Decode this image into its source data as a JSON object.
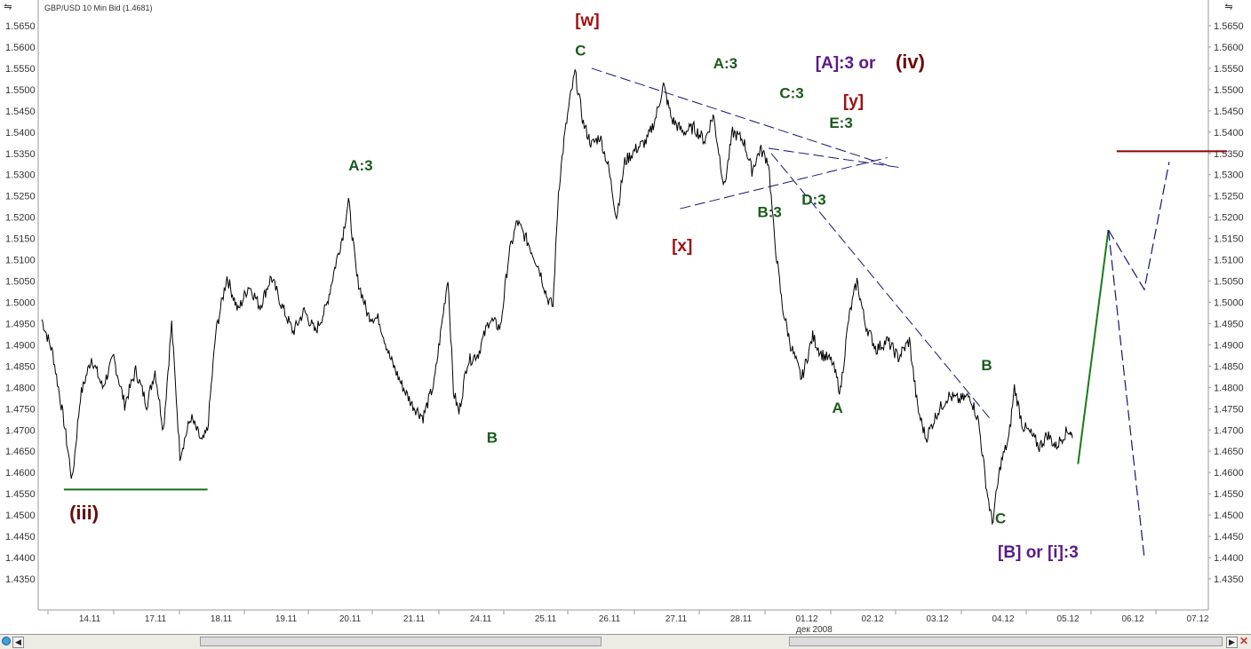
{
  "chart_data": {
    "type": "line",
    "title": "GBP/USD 10 Min Bid (1.4681)",
    "x_date_label": "дек 2008",
    "x_ticks": [
      "14.11",
      "17.11",
      "18.11",
      "19.11",
      "20.11",
      "21.11",
      "24.11",
      "25.11",
      "26.11",
      "27.11",
      "28.11",
      "01.12",
      "02.12",
      "03.12",
      "04.12",
      "05.12",
      "06.12",
      "07.12"
    ],
    "y_ticks": [
      "1.5650",
      "1.5600",
      "1.5550",
      "1.5500",
      "1.5450",
      "1.5400",
      "1.5350",
      "1.5300",
      "1.5250",
      "1.5200",
      "1.5150",
      "1.5100",
      "1.5050",
      "1.5000",
      "1.4950",
      "1.4900",
      "1.4850",
      "1.4800",
      "1.4750",
      "1.4700",
      "1.4650",
      "1.4600",
      "1.4550",
      "1.4500",
      "1.4450",
      "1.4400",
      "1.4350"
    ],
    "ylim": [
      1.43,
      1.568
    ],
    "price_path": [
      [
        13.0,
        1.496
      ],
      [
        13.2,
        1.488
      ],
      [
        13.4,
        1.472
      ],
      [
        13.55,
        1.458
      ],
      [
        13.7,
        1.478
      ],
      [
        13.9,
        1.487
      ],
      [
        14.1,
        1.48
      ],
      [
        14.3,
        1.487
      ],
      [
        14.5,
        1.476
      ],
      [
        14.7,
        1.484
      ],
      [
        14.9,
        1.476
      ],
      [
        15.05,
        1.484
      ],
      [
        15.2,
        1.47
      ],
      [
        15.35,
        1.495
      ],
      [
        15.5,
        1.464
      ],
      [
        15.7,
        1.473
      ],
      [
        15.9,
        1.467
      ],
      [
        16.0,
        1.47
      ],
      [
        16.15,
        1.493
      ],
      [
        16.35,
        1.506
      ],
      [
        16.55,
        1.498
      ],
      [
        16.75,
        1.504
      ],
      [
        16.95,
        1.499
      ],
      [
        17.15,
        1.506
      ],
      [
        17.35,
        1.499
      ],
      [
        17.55,
        1.493
      ],
      [
        17.75,
        1.498
      ],
      [
        17.95,
        1.493
      ],
      [
        18.15,
        1.499
      ],
      [
        18.3,
        1.508
      ],
      [
        18.45,
        1.516
      ],
      [
        18.55,
        1.524
      ],
      [
        18.7,
        1.506
      ],
      [
        18.9,
        1.497
      ],
      [
        19.1,
        1.496
      ],
      [
        19.3,
        1.487
      ],
      [
        19.5,
        1.481
      ],
      [
        19.7,
        1.476
      ],
      [
        19.9,
        1.473
      ],
      [
        20.1,
        1.481
      ],
      [
        20.25,
        1.496
      ],
      [
        20.35,
        1.506
      ],
      [
        20.45,
        1.479
      ],
      [
        20.55,
        1.474
      ],
      [
        20.7,
        1.486
      ],
      [
        20.9,
        1.488
      ],
      [
        21.1,
        1.496
      ],
      [
        21.3,
        1.494
      ],
      [
        21.45,
        1.511
      ],
      [
        21.6,
        1.519
      ],
      [
        21.8,
        1.514
      ],
      [
        22.0,
        1.508
      ],
      [
        22.15,
        1.501
      ],
      [
        22.25,
        1.499
      ],
      [
        22.35,
        1.526
      ],
      [
        22.45,
        1.538
      ],
      [
        22.55,
        1.547
      ],
      [
        22.65,
        1.554
      ],
      [
        22.8,
        1.542
      ],
      [
        22.95,
        1.537
      ],
      [
        23.1,
        1.539
      ],
      [
        23.25,
        1.532
      ],
      [
        23.4,
        1.52
      ],
      [
        23.55,
        1.533
      ],
      [
        23.75,
        1.536
      ],
      [
        23.95,
        1.538
      ],
      [
        24.1,
        1.543
      ],
      [
        24.25,
        1.551
      ],
      [
        24.4,
        1.543
      ],
      [
        24.6,
        1.54
      ],
      [
        24.8,
        1.541
      ],
      [
        25.0,
        1.538
      ],
      [
        25.15,
        1.544
      ],
      [
        25.35,
        1.527
      ],
      [
        25.5,
        1.54
      ],
      [
        25.7,
        1.538
      ],
      [
        25.85,
        1.531
      ],
      [
        26.0,
        1.536
      ],
      [
        26.15,
        1.533
      ],
      [
        26.25,
        1.516
      ],
      [
        26.4,
        1.499
      ],
      [
        26.55,
        1.49
      ],
      [
        26.75,
        1.482
      ],
      [
        26.95,
        1.492
      ],
      [
        27.1,
        1.488
      ],
      [
        27.3,
        1.486
      ],
      [
        27.45,
        1.479
      ],
      [
        27.6,
        1.496
      ],
      [
        27.75,
        1.505
      ],
      [
        27.9,
        1.495
      ],
      [
        28.1,
        1.489
      ],
      [
        28.3,
        1.491
      ],
      [
        28.5,
        1.487
      ],
      [
        28.7,
        1.491
      ],
      [
        28.85,
        1.475
      ],
      [
        29.0,
        1.468
      ],
      [
        29.2,
        1.474
      ],
      [
        29.4,
        1.478
      ],
      [
        29.6,
        1.477
      ],
      [
        29.8,
        1.478
      ],
      [
        29.95,
        1.472
      ],
      [
        30.1,
        1.456
      ],
      [
        30.2,
        1.448
      ],
      [
        30.35,
        1.462
      ],
      [
        30.5,
        1.468
      ],
      [
        30.6,
        1.48
      ],
      [
        30.75,
        1.471
      ],
      [
        30.9,
        1.469
      ],
      [
        31.05,
        1.466
      ],
      [
        31.2,
        1.469
      ],
      [
        31.35,
        1.466
      ],
      [
        31.5,
        1.469
      ],
      [
        31.6,
        1.47
      ],
      [
        31.65,
        1.4681
      ]
    ],
    "trendlines": [
      {
        "x": [
          26.15,
          28.52
        ],
        "y": [
          1.5362,
          1.5317
        ],
        "style": "dashed",
        "color": "#14147a"
      },
      {
        "x": [
          24.55,
          28.3
        ],
        "y": [
          1.522,
          1.534
        ],
        "style": "dashed",
        "color": "#14147a"
      },
      {
        "x": [
          22.95,
          28.35
        ],
        "y": [
          1.555,
          1.532
        ],
        "style": "dashed",
        "color": "#14147a"
      },
      {
        "x": [
          26.2,
          30.2
        ],
        "y": [
          1.535,
          1.472
        ],
        "style": "dashed",
        "color": "#14147a"
      },
      {
        "x": [
          13.4,
          16.0
        ],
        "y": [
          1.456,
          1.456
        ],
        "style": "solid",
        "color": "#1a6b1a"
      },
      {
        "x": [
          32.45,
          34.45
        ],
        "y": [
          1.5355,
          1.5355
        ],
        "style": "solid",
        "color": "#8b0000"
      }
    ],
    "projections": [
      {
        "x": [
          31.75,
          32.3
        ],
        "y": [
          1.462,
          1.517
        ],
        "style": "solid",
        "color": "#1a7a1a"
      },
      {
        "x": [
          32.3,
          32.95,
          33.4
        ],
        "y": [
          1.517,
          1.503,
          1.533
        ],
        "style": "dashed",
        "color": "#14147a"
      },
      {
        "x": [
          32.3,
          32.95
        ],
        "y": [
          1.517,
          1.44
        ],
        "style": "dashed",
        "color": "#14147a"
      }
    ],
    "annotations": [
      {
        "text": "(iii)",
        "x": 13.5,
        "y": 1.449,
        "color": "#6b0a0a",
        "size": 22
      },
      {
        "text": "A:3",
        "x": 18.55,
        "y": 1.531,
        "color": "#1a5a1a",
        "size": 17
      },
      {
        "text": "B",
        "x": 21.05,
        "y": 1.467,
        "color": "#1a5a1a",
        "size": 17
      },
      {
        "text": "[w]",
        "x": 22.65,
        "y": 1.565,
        "color": "#a01010",
        "size": 19
      },
      {
        "text": "C",
        "x": 22.65,
        "y": 1.558,
        "color": "#1a5a1a",
        "size": 17
      },
      {
        "text": "[x]",
        "x": 24.4,
        "y": 1.512,
        "color": "#a01010",
        "size": 19
      },
      {
        "text": "A:3",
        "x": 25.15,
        "y": 1.555,
        "color": "#1a5a1a",
        "size": 17
      },
      {
        "text": "B:3",
        "x": 25.95,
        "y": 1.52,
        "color": "#1a5a1a",
        "size": 17
      },
      {
        "text": "C:3",
        "x": 26.35,
        "y": 1.548,
        "color": "#1a5a1a",
        "size": 17
      },
      {
        "text": "D:3",
        "x": 26.75,
        "y": 1.523,
        "color": "#1a5a1a",
        "size": 17
      },
      {
        "text": "E:3",
        "x": 27.25,
        "y": 1.541,
        "color": "#1a5a1a",
        "size": 17
      },
      {
        "text": "[y]",
        "x": 27.5,
        "y": 1.546,
        "color": "#a01010",
        "size": 19
      },
      {
        "text": "[A]:3 or",
        "x": 27.0,
        "y": 1.555,
        "color": "#5a1a8a",
        "size": 19
      },
      {
        "text": "(iv)",
        "x": 28.45,
        "y": 1.555,
        "color": "#6b0a0a",
        "size": 22
      },
      {
        "text": "A",
        "x": 27.3,
        "y": 1.474,
        "color": "#1a5a1a",
        "size": 17
      },
      {
        "text": "B",
        "x": 30.0,
        "y": 1.484,
        "color": "#1a5a1a",
        "size": 17
      },
      {
        "text": "C",
        "x": 30.25,
        "y": 1.448,
        "color": "#1a5a1a",
        "size": 17
      },
      {
        "text": "[B] or [i]:3",
        "x": 30.3,
        "y": 1.44,
        "color": "#5a1a8a",
        "size": 19
      }
    ],
    "grid": false,
    "legend": "none"
  },
  "toolbar": {
    "left_scale_icon": "price-scale-icon",
    "right_scale_icon": "price-scale-icon",
    "scroll_left": "◀",
    "scroll_right": "▶",
    "close_glyph": "✕"
  }
}
